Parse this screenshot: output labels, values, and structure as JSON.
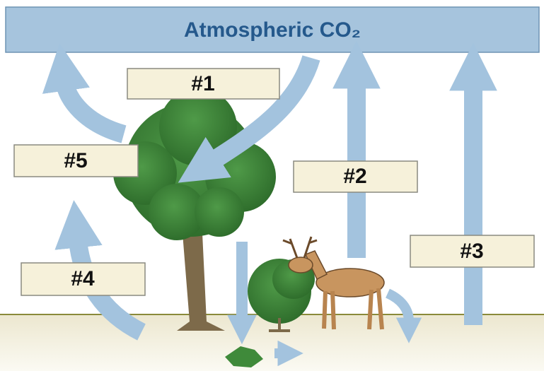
{
  "banner": {
    "title": "Atmospheric CO₂"
  },
  "labels": [
    "#1",
    "#2",
    "#3",
    "#4",
    "#5"
  ]
}
